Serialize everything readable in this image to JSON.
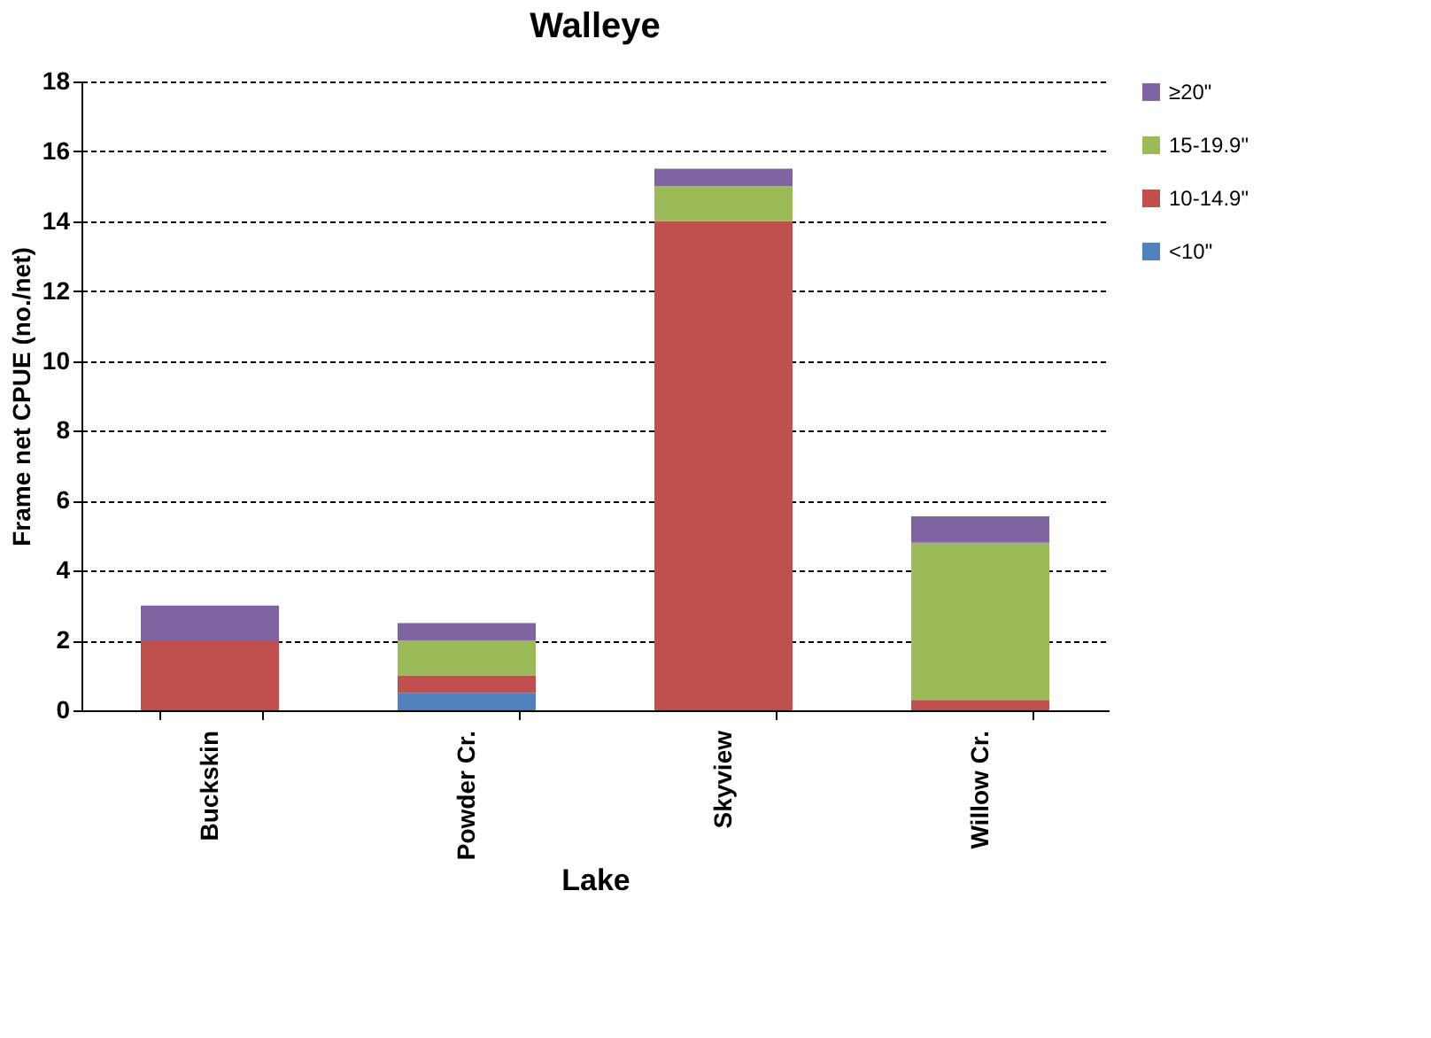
{
  "chart_data": {
    "type": "bar",
    "title": "Walleye",
    "xlabel": "Lake",
    "ylabel": "Frame net CPUE (no./net)",
    "categories": [
      "Buckskin",
      "Powder Cr.",
      "Skyview",
      "Willow Cr."
    ],
    "stacked": true,
    "series": [
      {
        "name": "<10\"",
        "color": "#4f81bd",
        "values": [
          0,
          0.5,
          0,
          0
        ]
      },
      {
        "name": "10-14.9\"",
        "color": "#c0504d",
        "values": [
          2,
          0.5,
          14,
          0.3
        ]
      },
      {
        "name": "15-19.9\"",
        "color": "#9bbb59",
        "values": [
          0,
          1,
          1,
          4.5
        ]
      },
      {
        "name": "≥20\"",
        "color": "#8064a2",
        "values": [
          1,
          0.5,
          0.5,
          0.75
        ]
      }
    ],
    "ylim": [
      0,
      18
    ],
    "yticks": [
      0,
      2,
      4,
      6,
      8,
      10,
      12,
      14,
      16,
      18
    ],
    "grid": "y",
    "legend": "right"
  }
}
